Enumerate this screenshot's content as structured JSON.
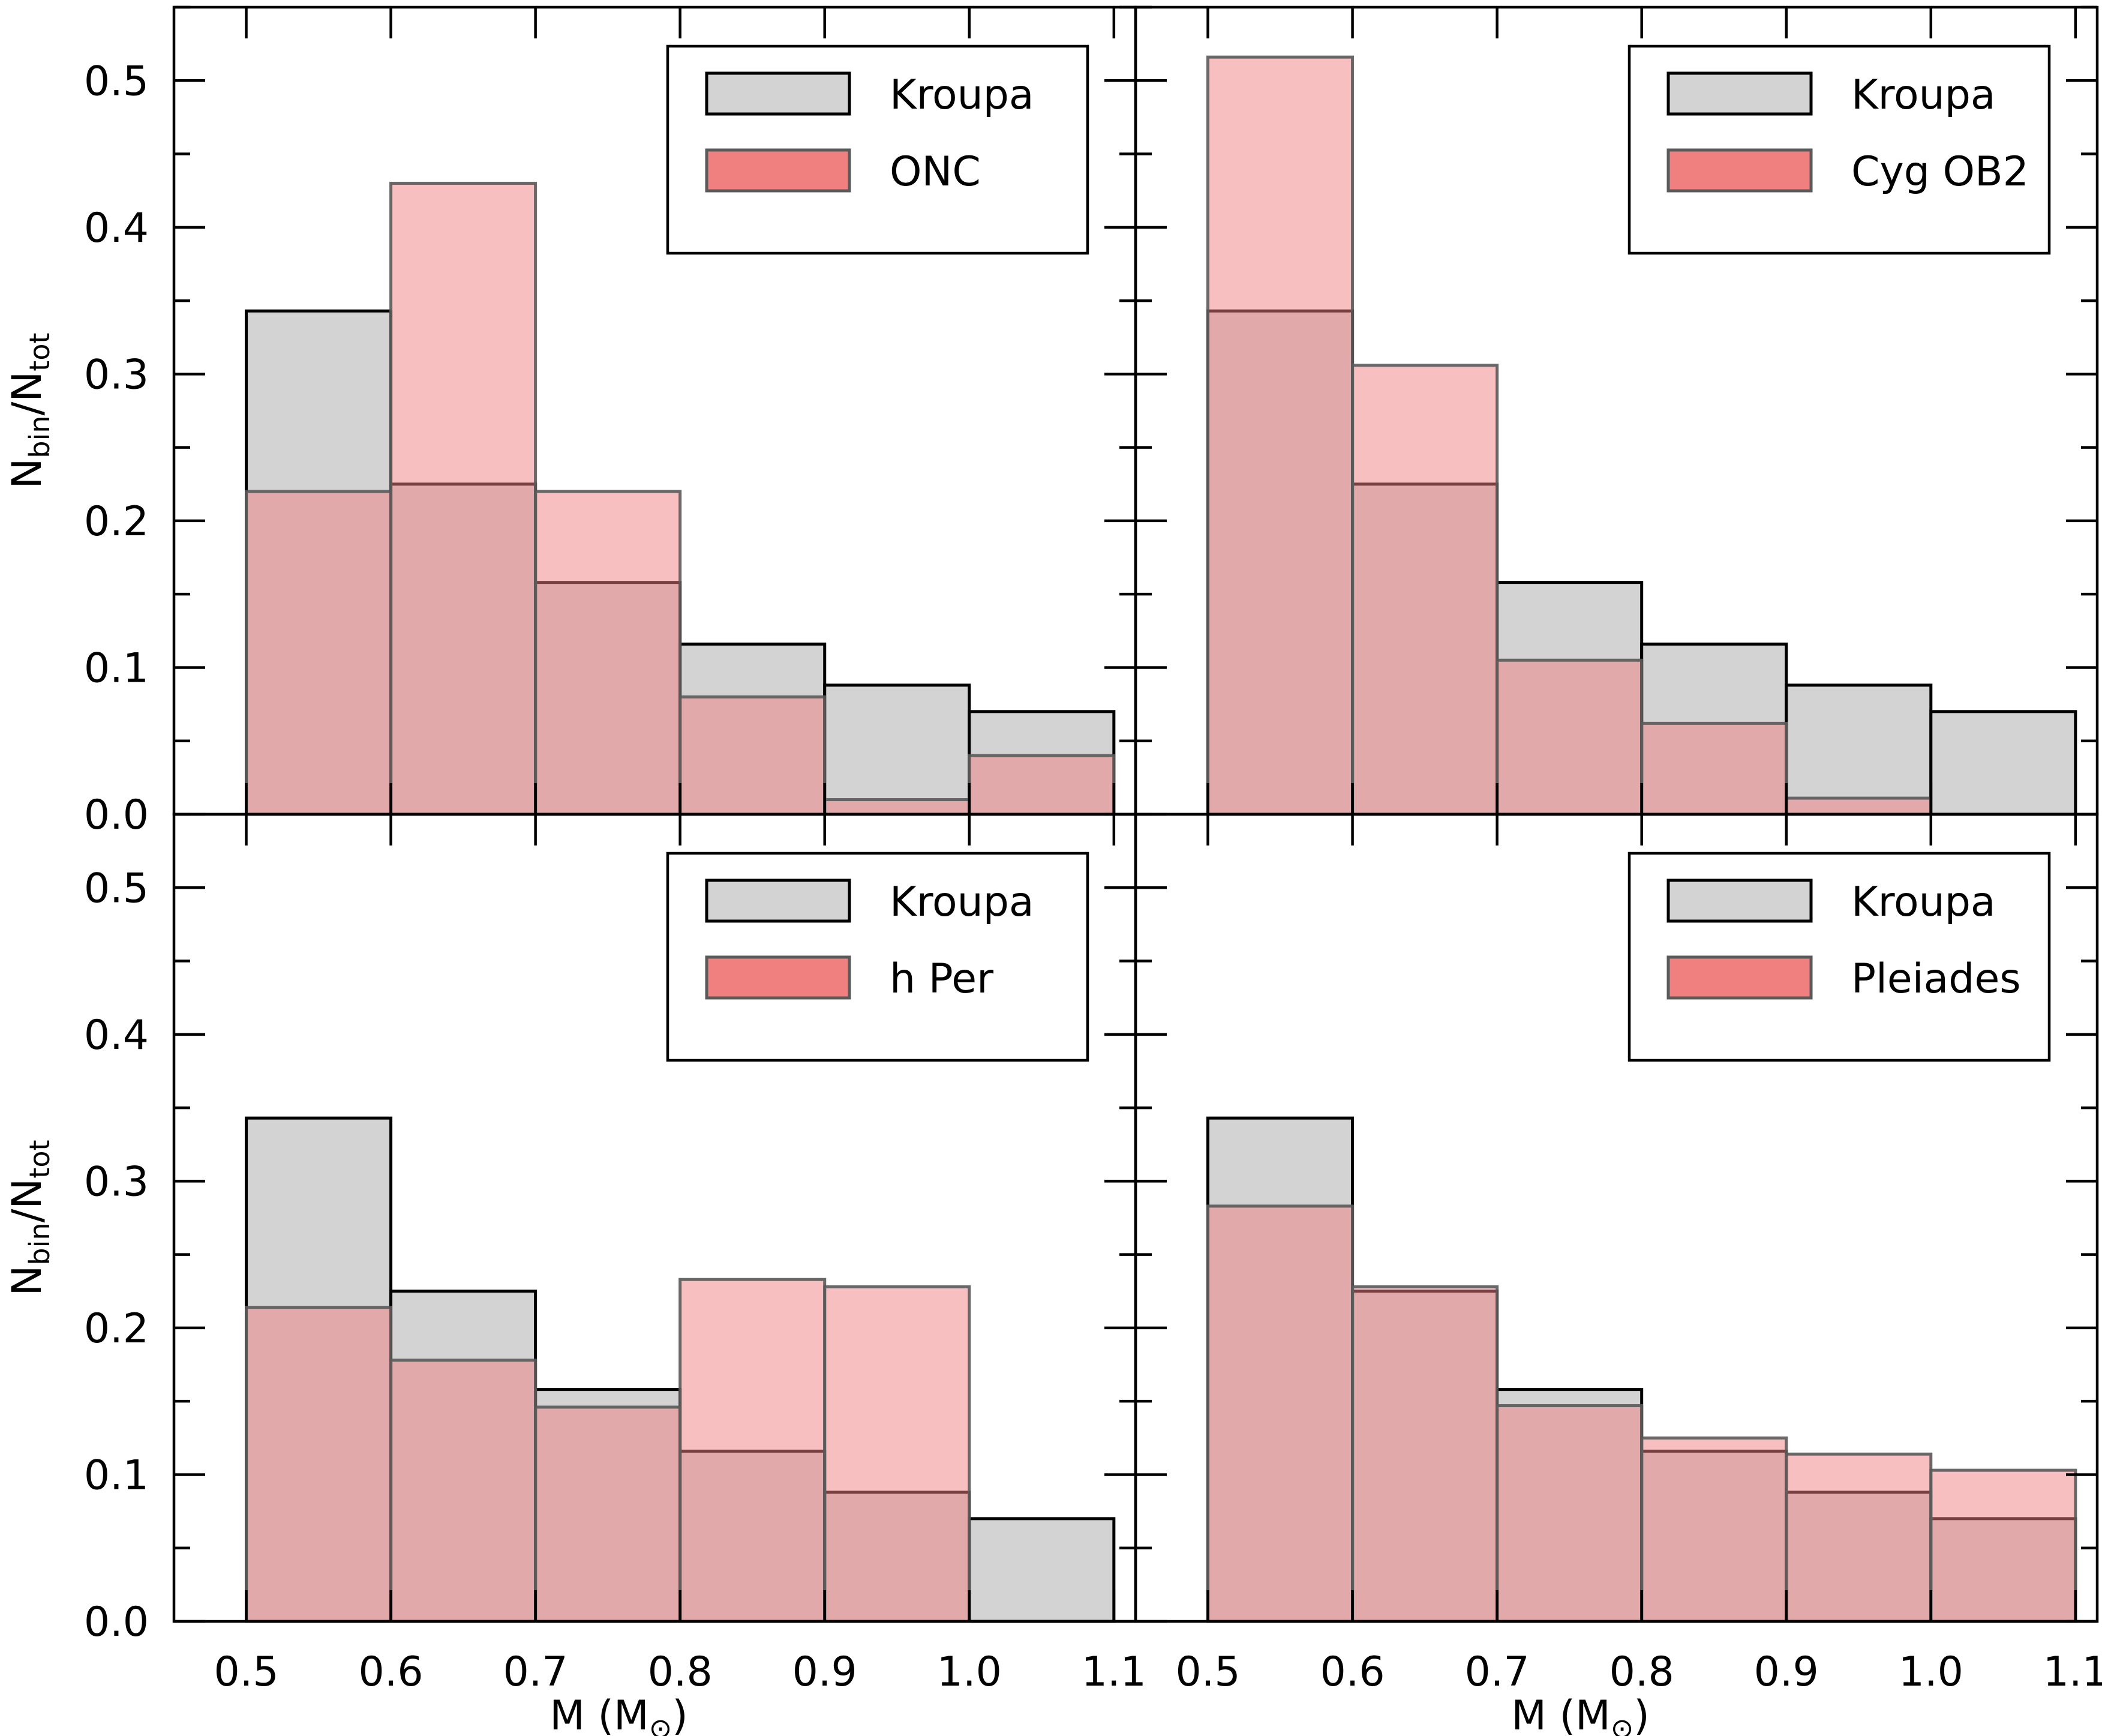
{
  "figure": {
    "shared_xlabel": "M (M⊙)",
    "shared_ylabel": "Nbin/Ntot",
    "colors": {
      "kroupa_fill": "#d3d3d3",
      "kroupa_edge": "#000000",
      "cluster_fill": "#f08080",
      "cluster_edge": "#5a5a5a",
      "axis": "#000000"
    }
  },
  "chart_data": [
    {
      "type": "bar",
      "panel": "top-left",
      "bin_edges": [
        0.5,
        0.6,
        0.7,
        0.8,
        0.9,
        1.0,
        1.1
      ],
      "categories": [
        "0.5-0.6",
        "0.6-0.7",
        "0.7-0.8",
        "0.8-0.9",
        "0.9-1.0",
        "1.0-1.1"
      ],
      "series": [
        {
          "name": "Kroupa",
          "values": [
            0.343,
            0.225,
            0.158,
            0.116,
            0.088,
            0.07
          ]
        },
        {
          "name": "ONC",
          "values": [
            0.22,
            0.43,
            0.22,
            0.08,
            0.01,
            0.04
          ]
        }
      ],
      "xlim": [
        0.45,
        1.115
      ],
      "ylim": [
        0.0,
        0.55
      ],
      "xticks": [
        "0.5",
        "0.6",
        "0.7",
        "0.8",
        "0.9",
        "1.0",
        "1.1"
      ],
      "yticks": [
        "0.0",
        "0.1",
        "0.2",
        "0.3",
        "0.4",
        "0.5"
      ],
      "xlabel": "",
      "ylabel": "Nbin/Ntot",
      "legend": [
        "Kroupa",
        "ONC"
      ],
      "legend_position": "top-right"
    },
    {
      "type": "bar",
      "panel": "top-right",
      "bin_edges": [
        0.5,
        0.6,
        0.7,
        0.8,
        0.9,
        1.0,
        1.1
      ],
      "categories": [
        "0.5-0.6",
        "0.6-0.7",
        "0.7-0.8",
        "0.8-0.9",
        "0.9-1.0",
        "1.0-1.1"
      ],
      "series": [
        {
          "name": "Kroupa",
          "values": [
            0.343,
            0.225,
            0.158,
            0.116,
            0.088,
            0.07
          ]
        },
        {
          "name": "Cyg OB2",
          "values": [
            0.516,
            0.306,
            0.105,
            0.062,
            0.011,
            0.0
          ]
        }
      ],
      "xlim": [
        0.45,
        1.115
      ],
      "ylim": [
        0.0,
        0.55
      ],
      "xticks": [
        "0.5",
        "0.6",
        "0.7",
        "0.8",
        "0.9",
        "1.0",
        "1.1"
      ],
      "yticks": [
        "0.0",
        "0.1",
        "0.2",
        "0.3",
        "0.4",
        "0.5"
      ],
      "xlabel": "",
      "ylabel": "",
      "legend": [
        "Kroupa",
        "Cyg OB2"
      ],
      "legend_position": "top-right"
    },
    {
      "type": "bar",
      "panel": "bottom-left",
      "bin_edges": [
        0.5,
        0.6,
        0.7,
        0.8,
        0.9,
        1.0,
        1.1
      ],
      "categories": [
        "0.5-0.6",
        "0.6-0.7",
        "0.7-0.8",
        "0.8-0.9",
        "0.9-1.0",
        "1.0-1.1"
      ],
      "series": [
        {
          "name": "Kroupa",
          "values": [
            0.343,
            0.225,
            0.158,
            0.116,
            0.088,
            0.07
          ]
        },
        {
          "name": "h Per",
          "values": [
            0.214,
            0.178,
            0.146,
            0.233,
            0.228,
            0.0
          ]
        }
      ],
      "xlim": [
        0.45,
        1.115
      ],
      "ylim": [
        0.0,
        0.55
      ],
      "xticks": [
        "0.5",
        "0.6",
        "0.7",
        "0.8",
        "0.9",
        "1.0",
        "1.1"
      ],
      "yticks": [
        "0.0",
        "0.1",
        "0.2",
        "0.3",
        "0.4",
        "0.5"
      ],
      "xlabel": "M (M⊙)",
      "ylabel": "Nbin/Ntot",
      "legend": [
        "Kroupa",
        "h Per"
      ],
      "legend_position": "top-right"
    },
    {
      "type": "bar",
      "panel": "bottom-right",
      "bin_edges": [
        0.5,
        0.6,
        0.7,
        0.8,
        0.9,
        1.0,
        1.1
      ],
      "categories": [
        "0.5-0.6",
        "0.6-0.7",
        "0.7-0.8",
        "0.8-0.9",
        "0.9-1.0",
        "1.0-1.1"
      ],
      "series": [
        {
          "name": "Kroupa",
          "values": [
            0.343,
            0.225,
            0.158,
            0.116,
            0.088,
            0.07
          ]
        },
        {
          "name": "Pleiades",
          "values": [
            0.283,
            0.228,
            0.147,
            0.125,
            0.114,
            0.103
          ]
        }
      ],
      "xlim": [
        0.45,
        1.115
      ],
      "ylim": [
        0.0,
        0.55
      ],
      "xticks": [
        "0.5",
        "0.6",
        "0.7",
        "0.8",
        "0.9",
        "1.0",
        "1.1"
      ],
      "yticks": [
        "0.0",
        "0.1",
        "0.2",
        "0.3",
        "0.4",
        "0.5"
      ],
      "xlabel": "M (M⊙)",
      "ylabel": "",
      "legend": [
        "Kroupa",
        "Pleiades"
      ],
      "legend_position": "top-right"
    }
  ]
}
